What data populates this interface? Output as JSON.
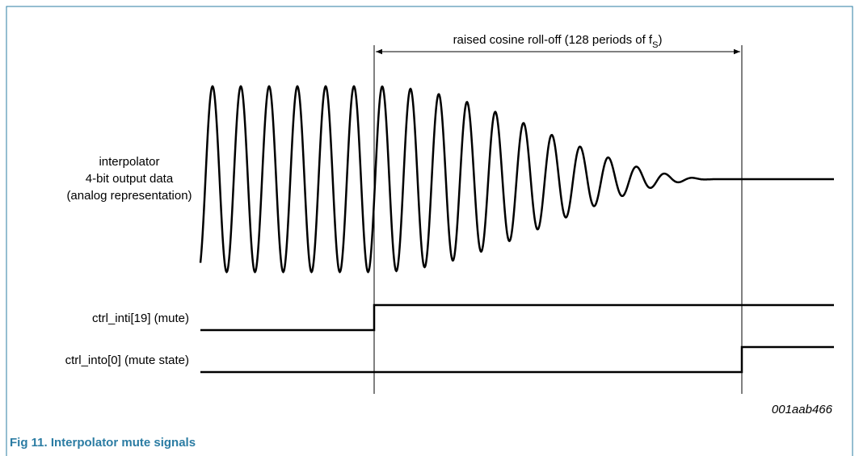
{
  "annotation": {
    "text": "raised cosine roll-off (128 periods of f",
    "subscript": "S",
    "suffix": ")"
  },
  "signals": [
    {
      "label_lines": [
        "interpolator",
        "4-bit output data",
        "(analog representation)"
      ]
    },
    {
      "label": "ctrl_inti[19] (mute)"
    },
    {
      "label": "ctrl_into[0] (mute state)"
    }
  ],
  "figure_id": "001aab466",
  "caption": "Fig 11. Interpolator mute signals"
}
